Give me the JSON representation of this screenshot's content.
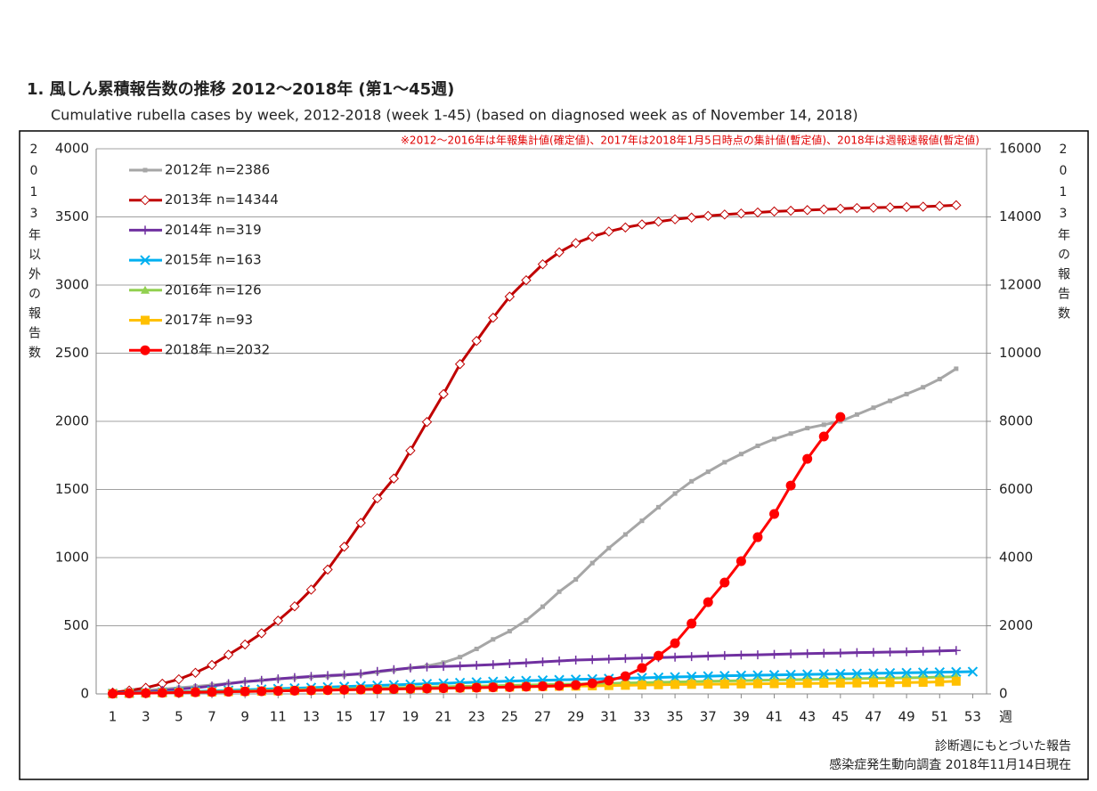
{
  "chart_data": {
    "type": "line",
    "title": "1. 風しん累積報告数の推移  2012〜2018年 (第1〜45週)",
    "subtitle": "Cumulative rubella cases by week, 2012-2018 (week 1-45)  (based on diagnosed week as of November 14, 2018)",
    "note": "※2012〜2016年は年報集計値(確定値)、2017年は2018年1月5日時点の集計値(暫定値)、2018年は週報速報値(暫定値)",
    "y_label": "2013年以外の報告数",
    "y2_label": "2013年の報告数",
    "x_label": "週",
    "footnotes": [
      "診断週にもとづいた報告",
      "感染症発生動向調査 2018年11月14日現在"
    ],
    "legend": "upper left",
    "grid": true,
    "x": [
      1,
      2,
      3,
      4,
      5,
      6,
      7,
      8,
      9,
      10,
      11,
      12,
      13,
      14,
      15,
      16,
      17,
      18,
      19,
      20,
      21,
      22,
      23,
      24,
      25,
      26,
      27,
      28,
      29,
      30,
      31,
      32,
      33,
      34,
      35,
      36,
      37,
      38,
      39,
      40,
      41,
      42,
      43,
      44,
      45,
      46,
      47,
      48,
      49,
      50,
      51,
      52,
      53
    ],
    "xlim": [
      0,
      54
    ],
    "xticks": [
      1,
      3,
      5,
      7,
      9,
      11,
      13,
      15,
      17,
      19,
      21,
      23,
      25,
      27,
      29,
      31,
      33,
      35,
      37,
      39,
      41,
      43,
      45,
      47,
      49,
      51,
      53
    ],
    "ylim": [
      0,
      4000
    ],
    "yticks": [
      0,
      500,
      1000,
      1500,
      2000,
      2500,
      3000,
      3500,
      4000
    ],
    "y2lim": [
      0,
      16000
    ],
    "y2ticks": [
      0,
      2000,
      4000,
      6000,
      8000,
      10000,
      12000,
      14000,
      16000
    ],
    "series": [
      {
        "name": "2012年 n=2386",
        "color": "#a6a6a6",
        "marker": "square-small",
        "values": [
          5,
          15,
          25,
          35,
          45,
          55,
          65,
          78,
          90,
          100,
          110,
          118,
          125,
          130,
          138,
          145,
          160,
          175,
          190,
          205,
          230,
          270,
          330,
          400,
          460,
          540,
          640,
          750,
          840,
          960,
          1070,
          1170,
          1270,
          1370,
          1470,
          1560,
          1630,
          1700,
          1760,
          1820,
          1870,
          1910,
          1950,
          1975,
          2000,
          2050,
          2100,
          2150,
          2200,
          2250,
          2310,
          2386,
          null
        ]
      },
      {
        "name": "2013年 n=14344",
        "color": "#c00000",
        "marker": "diamond",
        "axis": "y2",
        "values": [
          40,
          100,
          180,
          300,
          430,
          620,
          850,
          1150,
          1450,
          1780,
          2150,
          2570,
          3060,
          3650,
          4320,
          5020,
          5740,
          6320,
          7140,
          7980,
          8800,
          9680,
          10360,
          11040,
          11660,
          12140,
          12610,
          12960,
          13230,
          13420,
          13570,
          13690,
          13780,
          13860,
          13930,
          13980,
          14030,
          14070,
          14100,
          14130,
          14160,
          14180,
          14200,
          14220,
          14240,
          14260,
          14270,
          14280,
          14290,
          14300,
          14320,
          14344,
          null
        ]
      },
      {
        "name": "2014年 n=319",
        "color": "#7030a0",
        "marker": "plus",
        "values": [
          5,
          10,
          15,
          25,
          35,
          45,
          58,
          75,
          90,
          100,
          110,
          120,
          128,
          135,
          140,
          148,
          165,
          178,
          190,
          198,
          202,
          205,
          210,
          215,
          222,
          228,
          235,
          242,
          248,
          252,
          256,
          260,
          263,
          266,
          270,
          274,
          278,
          282,
          285,
          287,
          290,
          293,
          296,
          298,
          300,
          303,
          305,
          307,
          309,
          312,
          315,
          319,
          null
        ]
      },
      {
        "name": "2015年 n=163",
        "color": "#00b0f0",
        "marker": "x",
        "values": [
          3,
          6,
          9,
          12,
          15,
          18,
          22,
          26,
          30,
          34,
          38,
          42,
          46,
          50,
          54,
          58,
          62,
          66,
          70,
          74,
          78,
          82,
          86,
          90,
          94,
          97,
          100,
          103,
          106,
          109,
          112,
          115,
          118,
          121,
          124,
          127,
          130,
          133,
          135,
          137,
          139,
          141,
          143,
          145,
          147,
          149,
          151,
          153,
          155,
          157,
          159,
          161,
          163
        ]
      },
      {
        "name": "2016年 n=126",
        "color": "#92d050",
        "marker": "triangle",
        "values": [
          2,
          5,
          7,
          10,
          12,
          15,
          17,
          20,
          22,
          25,
          27,
          30,
          32,
          35,
          37,
          40,
          42,
          45,
          47,
          50,
          52,
          55,
          57,
          60,
          62,
          65,
          67,
          70,
          72,
          75,
          77,
          80,
          82,
          85,
          87,
          90,
          92,
          95,
          97,
          100,
          102,
          104,
          106,
          108,
          110,
          112,
          114,
          116,
          118,
          120,
          123,
          126,
          null
        ]
      },
      {
        "name": "2017年 n=93",
        "color": "#ffc000",
        "marker": "square",
        "values": [
          2,
          4,
          6,
          8,
          10,
          12,
          14,
          16,
          18,
          20,
          22,
          24,
          26,
          28,
          30,
          32,
          34,
          36,
          38,
          40,
          42,
          44,
          46,
          48,
          50,
          52,
          54,
          56,
          57,
          59,
          61,
          63,
          65,
          67,
          69,
          70,
          71,
          72,
          73,
          74,
          75,
          76,
          77,
          78,
          79,
          80,
          81,
          82,
          83,
          85,
          88,
          93,
          null
        ]
      },
      {
        "name": "2018年 n=2032",
        "color": "#ff0000",
        "marker": "circle",
        "values": [
          2,
          4,
          6,
          8,
          10,
          12,
          14,
          16,
          18,
          20,
          22,
          24,
          26,
          28,
          30,
          32,
          34,
          36,
          38,
          40,
          42,
          44,
          46,
          48,
          50,
          53,
          56,
          60,
          65,
          78,
          98,
          130,
          190,
          280,
          372,
          516,
          673,
          817,
          974,
          1150,
          1320,
          1529,
          1725,
          1889,
          2032,
          null,
          null,
          null,
          null,
          null,
          null,
          null,
          null
        ]
      }
    ]
  }
}
